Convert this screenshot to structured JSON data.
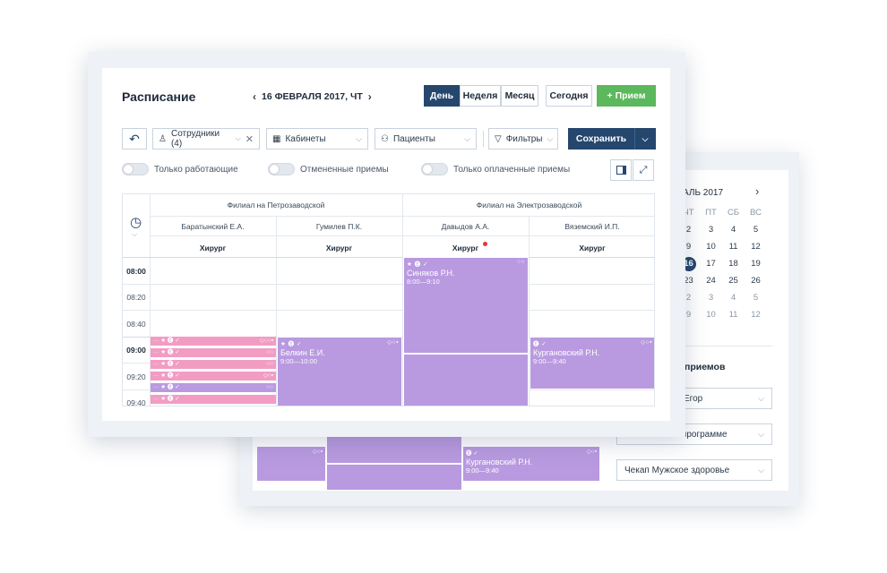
{
  "app": {
    "title": "Расписание",
    "date_label": "16 ФЕВРАЛЯ 2017, ЧТ"
  },
  "view_tabs": [
    {
      "label": "День",
      "active": true
    },
    {
      "label": "Неделя",
      "active": false
    },
    {
      "label": "Месяц",
      "active": false
    }
  ],
  "today_label": "Сегодня",
  "add_label": "+ Прием",
  "filters": {
    "staff": "Сотрудники (4)",
    "rooms": "Кабинеты",
    "patients": "Пациенты",
    "filters": "Фильтры",
    "save": "Сохранить"
  },
  "toggles": {
    "working_only": "Только работающие",
    "cancelled": "Отмененные приемы",
    "paid_only": "Только оплаченные приемы"
  },
  "branches": [
    {
      "name": "Филиал на Петрозаводской"
    },
    {
      "name": "Филиал на Электрозаводской"
    }
  ],
  "doctors": [
    {
      "name": "Баратынский Е.А.",
      "role": "Хирург"
    },
    {
      "name": "Гумилев П.К.",
      "role": "Хирург"
    },
    {
      "name": "Давыдов А.А.",
      "role": "Хирург"
    },
    {
      "name": "Вяземский И.П.",
      "role": "Хирург"
    }
  ],
  "times": [
    "08:00",
    "08:20",
    "08:40",
    "09:00",
    "09:20",
    "09:40"
  ],
  "events": {
    "sinyakov": {
      "name": "Синяков Р.Н.",
      "time": "8:00—9:10",
      "icons": "★ 🅔 ✓",
      "dots": "○○"
    },
    "belkin": {
      "name": "Белкин Е.И.",
      "time": "9:00—10:00",
      "icons": "★ 🅔 ✓",
      "dots": "◇○▪"
    },
    "kurganovsky": {
      "name": "Кургановский Р.Н.",
      "time": "9:00—9:40",
      "icons": "🅔 ✓",
      "dots": "◇○▪"
    }
  },
  "pink_rows": [
    {
      "icons": "··· ★ 🅔 ✓",
      "dots": "◇○○▪"
    },
    {
      "icons": "··· ★ 🅔 ✓",
      "dots": "○○"
    },
    {
      "icons": "··· ★ 🅔 ✓",
      "dots": "○○"
    },
    {
      "icons": "··· ★ 🅔 ✓",
      "dots": "◇○▪"
    },
    {
      "icons": "··· ★ 🅔 ✓",
      "dots": "○○"
    },
    {
      "icons": "··· ★ 🅔 ✓",
      "dots": ""
    },
    {
      "icons": "··· ★ 🅔 ✓",
      "dots": ""
    }
  ],
  "back_panel": {
    "month_label": "АЛЬ 2017",
    "weekdays": [
      "ЧТ",
      "ПТ",
      "СБ",
      "ВС"
    ],
    "weeks": [
      [
        "2",
        "3",
        "4",
        "5"
      ],
      [
        "9",
        "10",
        "11",
        "12"
      ],
      [
        "16",
        "17",
        "18",
        "19"
      ],
      [
        "23",
        "24",
        "25",
        "26"
      ],
      [
        "2",
        "3",
        "4",
        "5"
      ],
      [
        "9",
        "10",
        "11",
        "12"
      ]
    ],
    "section_title": "приемов",
    "dropdowns": [
      "Егор",
      "ой программе",
      "Чекап Мужское здоровье"
    ],
    "event": {
      "name": "Кургановский Р.Н.",
      "time": "9:00—9:40",
      "icons": "🅔 ✓",
      "dots": "◇○▪"
    }
  }
}
